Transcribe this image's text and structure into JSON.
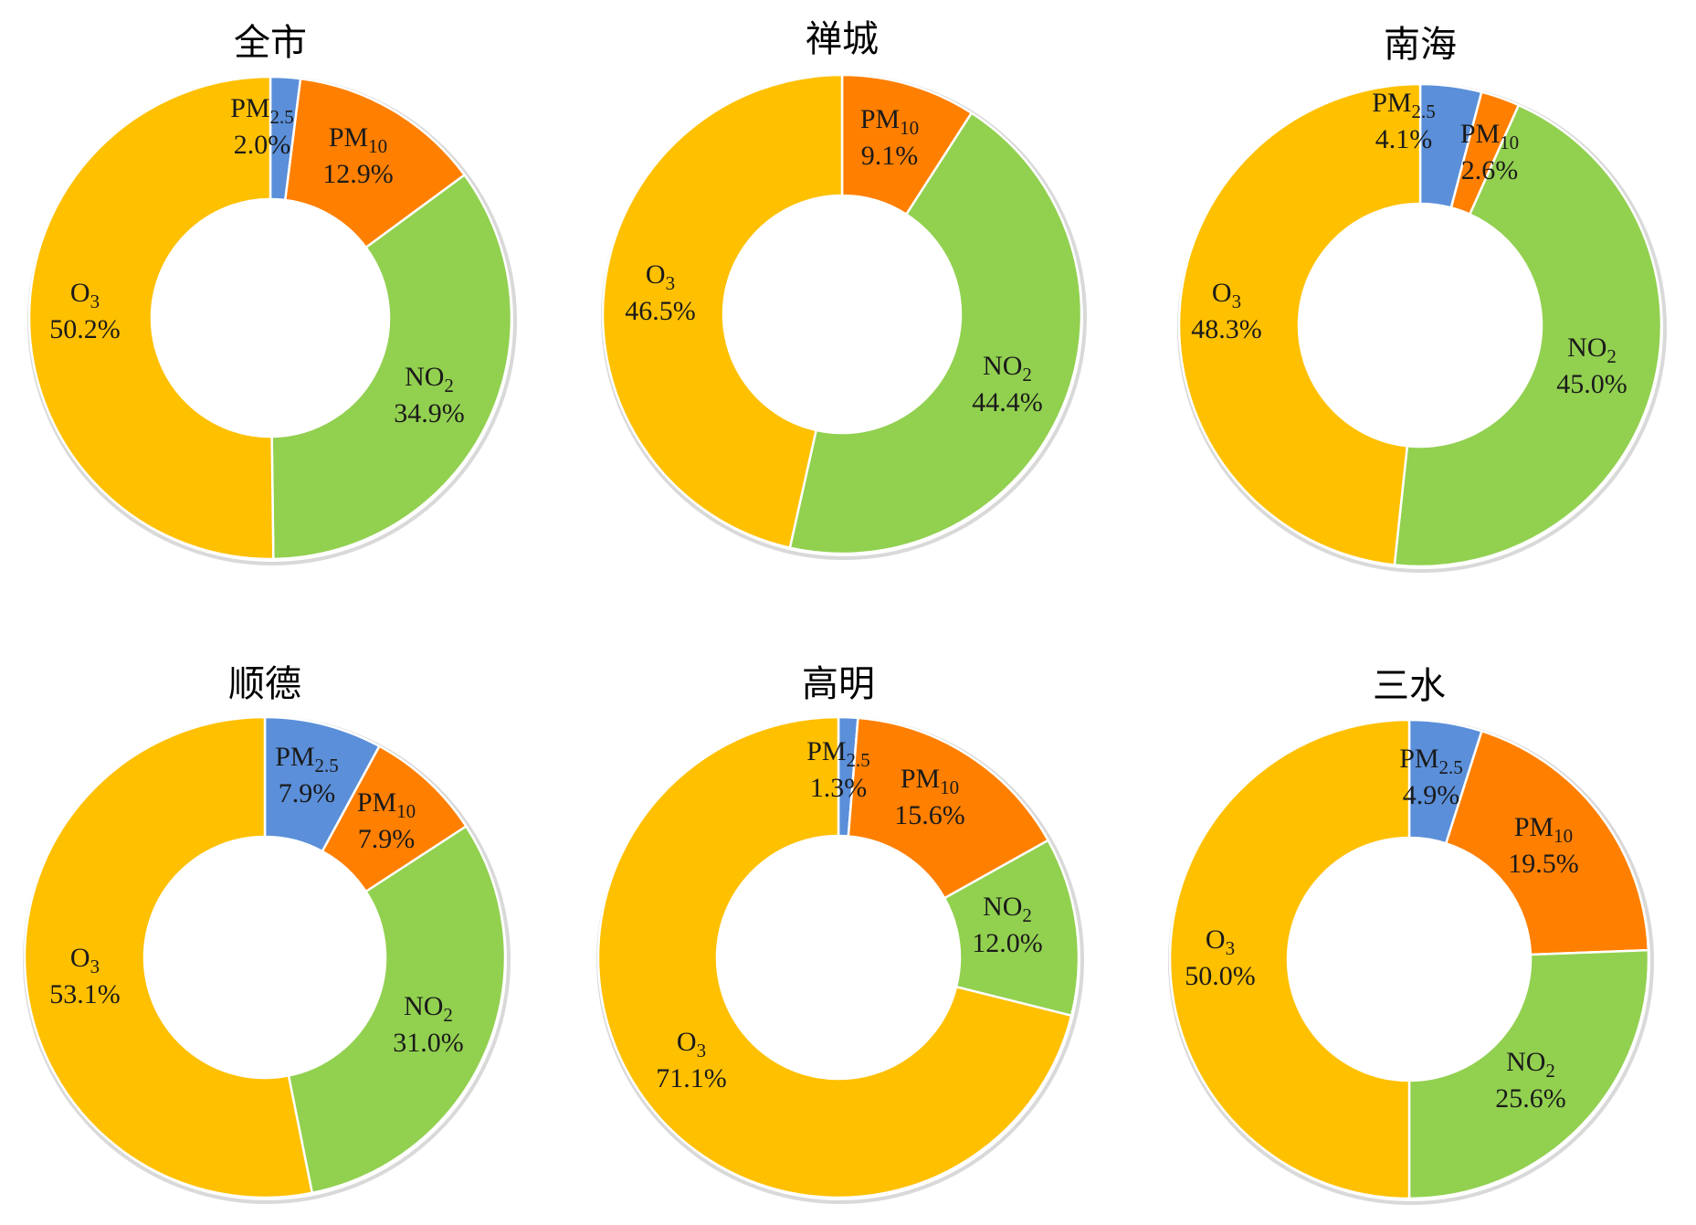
{
  "chart_data": [
    {
      "type": "pie",
      "title": "全市",
      "hole": true,
      "slices": [
        {
          "name": "PM",
          "sub": "2.5",
          "value": 2.0,
          "label": "2.0%",
          "color": "#5b8fd9"
        },
        {
          "name": "PM",
          "sub": "10",
          "value": 12.9,
          "label": "12.9%",
          "color": "#ff7f00"
        },
        {
          "name": "NO",
          "sub": "2",
          "value": 34.9,
          "label": "34.9%",
          "color": "#92d050"
        },
        {
          "name": "O",
          "sub": "3",
          "value": 50.2,
          "label": "50.2%",
          "color": "#ffc000"
        }
      ]
    },
    {
      "type": "pie",
      "title": "禅城",
      "hole": true,
      "slices": [
        {
          "name": "PM",
          "sub": "10",
          "value": 9.1,
          "label": "9.1%",
          "color": "#ff7f00"
        },
        {
          "name": "NO",
          "sub": "2",
          "value": 44.4,
          "label": "44.4%",
          "color": "#92d050"
        },
        {
          "name": "O",
          "sub": "3",
          "value": 46.5,
          "label": "46.5%",
          "color": "#ffc000"
        }
      ]
    },
    {
      "type": "pie",
      "title": "南海",
      "hole": true,
      "slices": [
        {
          "name": "PM",
          "sub": "2.5",
          "value": 4.1,
          "label": "4.1%",
          "color": "#5b8fd9"
        },
        {
          "name": "PM",
          "sub": "10",
          "value": 2.6,
          "label": "2.6%",
          "color": "#ff7f00"
        },
        {
          "name": "NO",
          "sub": "2",
          "value": 45.0,
          "label": "45.0%",
          "color": "#92d050"
        },
        {
          "name": "O",
          "sub": "3",
          "value": 48.3,
          "label": "48.3%",
          "color": "#ffc000"
        }
      ]
    },
    {
      "type": "pie",
      "title": "顺德",
      "hole": true,
      "slices": [
        {
          "name": "PM",
          "sub": "2.5",
          "value": 7.9,
          "label": "7.9%",
          "color": "#5b8fd9"
        },
        {
          "name": "PM",
          "sub": "10",
          "value": 7.9,
          "label": "7.9%",
          "color": "#ff7f00"
        },
        {
          "name": "NO",
          "sub": "2",
          "value": 31.0,
          "label": "31.0%",
          "color": "#92d050"
        },
        {
          "name": "O",
          "sub": "3",
          "value": 53.1,
          "label": "53.1%",
          "color": "#ffc000"
        }
      ]
    },
    {
      "type": "pie",
      "title": "高明",
      "hole": true,
      "slices": [
        {
          "name": "PM",
          "sub": "2.5",
          "value": 1.3,
          "label": "1.3%",
          "color": "#5b8fd9"
        },
        {
          "name": "PM",
          "sub": "10",
          "value": 15.6,
          "label": "15.6%",
          "color": "#ff7f00"
        },
        {
          "name": "NO",
          "sub": "2",
          "value": 12.0,
          "label": "12.0%",
          "color": "#92d050"
        },
        {
          "name": "O",
          "sub": "3",
          "value": 71.1,
          "label": "71.1%",
          "color": "#ffc000"
        }
      ]
    },
    {
      "type": "pie",
      "title": "三水",
      "hole": true,
      "slices": [
        {
          "name": "PM",
          "sub": "2.5",
          "value": 4.9,
          "label": "4.9%",
          "color": "#5b8fd9"
        },
        {
          "name": "PM",
          "sub": "10",
          "value": 19.5,
          "label": "19.5%",
          "color": "#ff7f00"
        },
        {
          "name": "NO",
          "sub": "2",
          "value": 25.6,
          "label": "25.6%",
          "color": "#92d050"
        },
        {
          "name": "O",
          "sub": "3",
          "value": 50.0,
          "label": "50.0%",
          "color": "#ffc000"
        }
      ]
    }
  ]
}
